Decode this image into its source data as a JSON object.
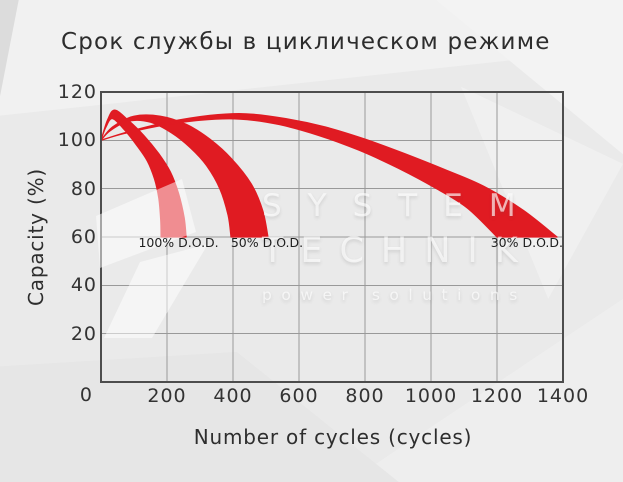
{
  "title": "Срок службы в циклическом режиме",
  "watermark": {
    "line1": "SYSTEM",
    "line2": "TECHNIK",
    "line3": "power solutions"
  },
  "chart_data": {
    "type": "area",
    "title": "Срок службы в циклическом режиме",
    "xlabel": "Number of cycles (cycles)",
    "ylabel": "Capacity (%)",
    "xlim": [
      0,
      1400
    ],
    "ylim": [
      0,
      120
    ],
    "x_ticks": [
      0,
      200,
      400,
      600,
      800,
      1000,
      1200,
      1400
    ],
    "y_ticks": [
      0,
      20,
      40,
      60,
      80,
      100,
      120
    ],
    "grid": true,
    "origin_label": "0",
    "legend_position": "none",
    "series": [
      {
        "name": "100% D.O.D.",
        "upper": [
          [
            0,
            100
          ],
          [
            20,
            108.5
          ],
          [
            42,
            112.5
          ],
          [
            85,
            108
          ],
          [
            130,
            102
          ],
          [
            175,
            94.5
          ],
          [
            210,
            87
          ],
          [
            235,
            78
          ],
          [
            252,
            68
          ],
          [
            258,
            60
          ]
        ],
        "lower": [
          [
            0,
            100
          ],
          [
            15,
            105.5
          ],
          [
            35,
            109
          ],
          [
            70,
            104.5
          ],
          [
            105,
            98.5
          ],
          [
            140,
            91.5
          ],
          [
            162,
            84
          ],
          [
            175,
            76
          ],
          [
            181,
            67
          ],
          [
            182,
            60
          ]
        ]
      },
      {
        "name": "50% D.O.D.",
        "upper": [
          [
            0,
            100
          ],
          [
            35,
            105.5
          ],
          [
            100,
            110
          ],
          [
            180,
            110
          ],
          [
            260,
            106.5
          ],
          [
            330,
            100.5
          ],
          [
            395,
            92.5
          ],
          [
            455,
            82
          ],
          [
            490,
            71
          ],
          [
            506,
            60
          ]
        ],
        "lower": [
          [
            0,
            100
          ],
          [
            28,
            104
          ],
          [
            85,
            108
          ],
          [
            150,
            107.5
          ],
          [
            215,
            103
          ],
          [
            270,
            97
          ],
          [
            320,
            89.5
          ],
          [
            360,
            80
          ],
          [
            385,
            69
          ],
          [
            394,
            60
          ]
        ]
      },
      {
        "name": "30% D.O.D.",
        "upper": [
          [
            0,
            100
          ],
          [
            80,
            103.5
          ],
          [
            200,
            107.5
          ],
          [
            330,
            110.3
          ],
          [
            440,
            111
          ],
          [
            560,
            109
          ],
          [
            680,
            105.5
          ],
          [
            800,
            100.5
          ],
          [
            920,
            94.5
          ],
          [
            1040,
            88
          ],
          [
            1160,
            81
          ],
          [
            1280,
            71
          ],
          [
            1382,
            60
          ]
        ],
        "lower": [
          [
            0,
            100
          ],
          [
            70,
            102.8
          ],
          [
            180,
            106
          ],
          [
            300,
            108.3
          ],
          [
            420,
            108.8
          ],
          [
            540,
            106.5
          ],
          [
            660,
            102
          ],
          [
            780,
            96
          ],
          [
            900,
            88.5
          ],
          [
            1010,
            80.5
          ],
          [
            1110,
            72
          ],
          [
            1200,
            60
          ]
        ]
      }
    ],
    "annotations": [
      {
        "text": "100% D.O.D.",
        "x": 235,
        "y": 57,
        "align": "center"
      },
      {
        "text": "50% D.O.D.",
        "x": 503,
        "y": 57,
        "align": "center"
      },
      {
        "text": "30% D.O.D.",
        "x": 1400,
        "y": 57,
        "align": "right"
      }
    ]
  },
  "colors": {
    "background": "#eaeaea",
    "band": "#e01b22",
    "grid": "#999999",
    "axis_border": "#4d4d4d",
    "tick_text": "#333333",
    "title_text": "#2d2d2d",
    "watermark_text": "rgba(255,255,255,0.66)"
  }
}
